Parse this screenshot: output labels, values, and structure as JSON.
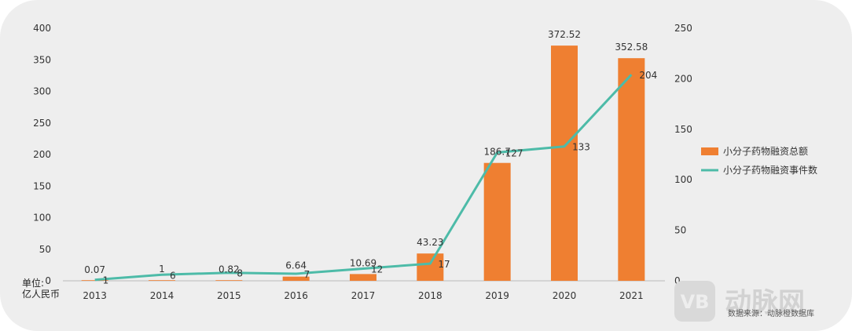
{
  "chart_data": {
    "type": "bar",
    "categories": [
      "2013",
      "2014",
      "2015",
      "2016",
      "2017",
      "2018",
      "2019",
      "2020",
      "2021"
    ],
    "series": [
      {
        "name": "小分子药物融资总额",
        "type": "bar",
        "axis": "left",
        "color": "#ef7f31",
        "values": [
          0.07,
          1,
          0.82,
          6.64,
          10.69,
          43.23,
          186.7,
          372.52,
          352.58
        ],
        "labels": [
          "0.07",
          "1",
          "0.82",
          "6.64",
          "10.69",
          "43.23",
          "186.7",
          "372.52",
          "352.58"
        ]
      },
      {
        "name": "小分子药物融资事件数",
        "type": "line",
        "axis": "right",
        "color": "#4dbba8",
        "values": [
          1,
          6,
          8,
          7,
          12,
          17,
          127,
          133,
          204
        ],
        "labels": [
          "1",
          "6",
          "8",
          "7",
          "12",
          "17",
          "127",
          "133",
          "204"
        ]
      }
    ],
    "left_axis": {
      "min": 0,
      "max": 400,
      "ticks": [
        "0",
        "50",
        "100",
        "150",
        "200",
        "250",
        "300",
        "350",
        "400"
      ]
    },
    "right_axis": {
      "min": 0,
      "max": 250,
      "ticks": [
        "0",
        "50",
        "100",
        "150",
        "200",
        "250"
      ]
    },
    "unit_label_line1": "单位:",
    "unit_label_line2": "亿人民币",
    "legend_position": "right",
    "grid": false
  },
  "source_text": "数据来源：动脉橙数据库",
  "watermark": {
    "text": "动脉网",
    "icon_letter": "VB"
  }
}
